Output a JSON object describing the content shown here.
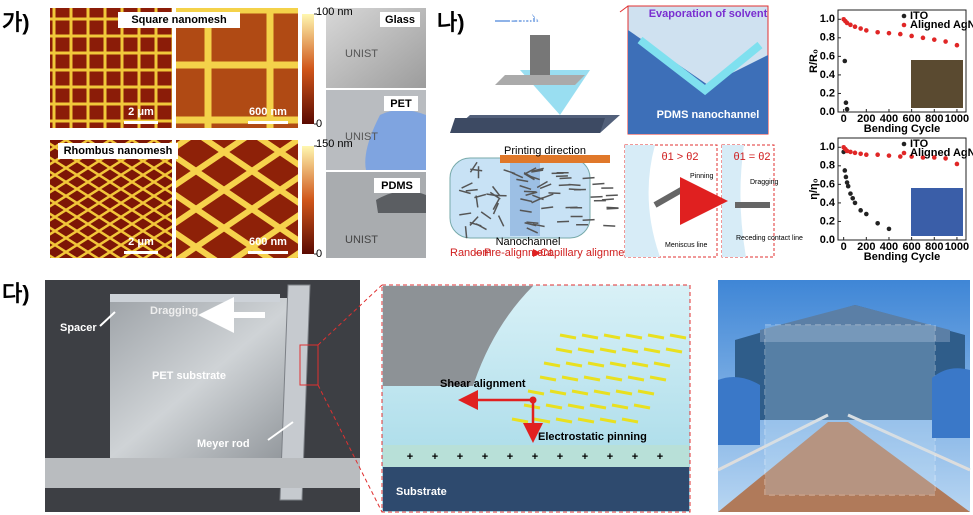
{
  "panel_ga": {
    "label": "가)",
    "square_title": "Square nanomesh",
    "rhombus_title": "Rhombus nanomesh",
    "scale_large": "2 μm",
    "scale_small": "600 nm",
    "colorbars": [
      {
        "ticks": [
          {
            "value": 100,
            "label": "100 nm"
          },
          0
        ]
      },
      {
        "ticks": [
          {
            "value": 150,
            "label": "150 nm"
          },
          0
        ]
      }
    ],
    "substrates": [
      "Glass",
      "PET",
      "PDMS"
    ],
    "logo": "UNIST"
  },
  "panel_na": {
    "label": "나)",
    "printing": "Printing",
    "evaporation": "Evaporation of solvent",
    "nanochannel_label": "PDMS nanochannel",
    "printing_direction": "Printing direction",
    "nanochannel": "Nanochannel",
    "steps": [
      "Random",
      "Pre-alignment",
      "Capillary alignment"
    ],
    "pinning": "Pinning",
    "meniscus": "Meniscus line",
    "dragging": "Dragging",
    "receding": "Receding contact line",
    "angle_unequal": "θ1 > θ2",
    "angle_equal": "θ1 = θ2",
    "charts": [
      {
        "type": "scatter",
        "ylabel": "R/R₀",
        "xlabel": "Bending Cycle",
        "xlim": [
          -50,
          1080
        ],
        "ylim": [
          0,
          1.1
        ],
        "xticks": [
          0,
          200,
          400,
          600,
          800,
          1000
        ],
        "yticks": [
          {
            "value": 0,
            "label": "0.0"
          },
          0.2,
          0.4,
          0.6,
          0.8,
          {
            "value": 1,
            "label": "1.0"
          }
        ],
        "legend": "upper right",
        "series": [
          {
            "name": "ITO",
            "color": "#222222",
            "x": [
              10,
              20,
              30
            ],
            "values": [
              0.55,
              0.1,
              0.03
            ]
          },
          {
            "name": "Aligned AgNW",
            "color": "#e02626",
            "x": [
              0,
              15,
              30,
              60,
              100,
              150,
              200,
              300,
              400,
              500,
              600,
              700,
              800,
              900,
              1000
            ],
            "values": [
              1.0,
              0.98,
              0.96,
              0.94,
              0.92,
              0.9,
              0.88,
              0.86,
              0.85,
              0.84,
              0.82,
              0.8,
              0.78,
              0.76,
              0.72
            ]
          }
        ]
      },
      {
        "type": "scatter",
        "ylabel": "η/η₀",
        "xlabel": "Bending Cycle",
        "xlim": [
          -50,
          1080
        ],
        "ylim": [
          0,
          1.1
        ],
        "xticks": [
          0,
          200,
          400,
          600,
          800,
          1000
        ],
        "yticks": [
          {
            "value": 0,
            "label": "0.0"
          },
          0.2,
          0.4,
          0.6,
          0.8,
          {
            "value": 1,
            "label": "1.0"
          }
        ],
        "legend": "upper right",
        "series": [
          {
            "name": "ITO",
            "color": "#222222",
            "x": [
              0,
              10,
              20,
              30,
              40,
              60,
              80,
              100,
              150,
              200,
              300,
              400
            ],
            "values": [
              0.95,
              0.75,
              0.68,
              0.62,
              0.58,
              0.5,
              0.45,
              0.4,
              0.32,
              0.28,
              0.18,
              0.12
            ]
          },
          {
            "name": "Aligned AgNW",
            "color": "#e02626",
            "x": [
              0,
              15,
              30,
              60,
              100,
              150,
              200,
              300,
              400,
              500,
              600,
              700,
              800,
              900,
              1000
            ],
            "values": [
              1.0,
              0.98,
              0.96,
              0.95,
              0.94,
              0.93,
              0.92,
              0.92,
              0.91,
              0.9,
              0.9,
              0.89,
              0.89,
              0.88,
              0.82
            ]
          }
        ]
      }
    ]
  },
  "panel_da": {
    "label": "다)",
    "spacer": "Spacer",
    "dragging": "Dragging",
    "pet": "PET substrate",
    "rod": "Meyer rod",
    "shear": "Shear alignment",
    "pinning": "Electrostatic pinning",
    "substrate": "Substrate",
    "charge": "+"
  }
}
